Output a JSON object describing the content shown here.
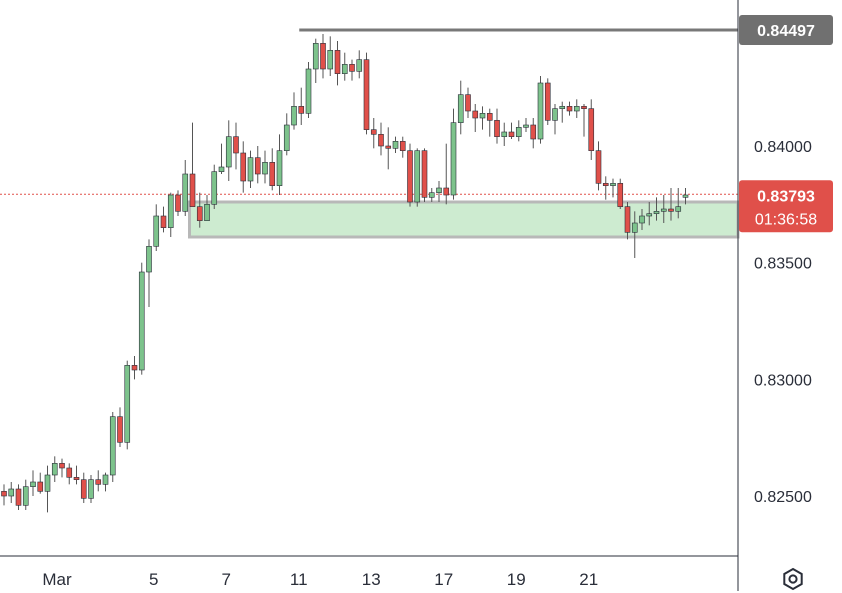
{
  "chart_data": {
    "type": "candlestick",
    "title": "",
    "xlabel": "",
    "ylabel": "",
    "ylim": [
      0.8224,
      0.8462
    ],
    "y_ticks": [
      "0.84000",
      "0.83500",
      "0.83000",
      "0.82500"
    ],
    "x_ticks": [
      {
        "label": "Mar",
        "index": 5
      },
      {
        "label": "5",
        "index": 19
      },
      {
        "label": "7",
        "index": 29
      },
      {
        "label": "11",
        "index": 39
      },
      {
        "label": "13",
        "index": 49
      },
      {
        "label": "17",
        "index": 59
      },
      {
        "label": "19",
        "index": 69
      },
      {
        "label": "21",
        "index": 79
      }
    ],
    "candles": [
      [
        0.8252,
        0.8255,
        0.8246,
        0.825
      ],
      [
        0.825,
        0.8256,
        0.8247,
        0.8253
      ],
      [
        0.8253,
        0.8255,
        0.8244,
        0.8246
      ],
      [
        0.8246,
        0.8257,
        0.8244,
        0.8254
      ],
      [
        0.8254,
        0.8261,
        0.825,
        0.8256
      ],
      [
        0.8256,
        0.826,
        0.8251,
        0.8252
      ],
      [
        0.8252,
        0.8263,
        0.8243,
        0.8259
      ],
      [
        0.8259,
        0.8267,
        0.8256,
        0.8264
      ],
      [
        0.8264,
        0.8266,
        0.8258,
        0.8262
      ],
      [
        0.8262,
        0.8264,
        0.8255,
        0.8258
      ],
      [
        0.8258,
        0.8263,
        0.8255,
        0.8257
      ],
      [
        0.8257,
        0.826,
        0.8247,
        0.8249
      ],
      [
        0.8249,
        0.8259,
        0.8247,
        0.8257
      ],
      [
        0.8257,
        0.8261,
        0.8252,
        0.8255
      ],
      [
        0.8255,
        0.826,
        0.8252,
        0.8259
      ],
      [
        0.8259,
        0.8286,
        0.8256,
        0.8284
      ],
      [
        0.8284,
        0.8288,
        0.8271,
        0.8273
      ],
      [
        0.8273,
        0.8308,
        0.827,
        0.8306
      ],
      [
        0.8306,
        0.831,
        0.83,
        0.8304
      ],
      [
        0.8304,
        0.835,
        0.8302,
        0.8346
      ],
      [
        0.8346,
        0.836,
        0.8331,
        0.8357
      ],
      [
        0.8357,
        0.8375,
        0.8355,
        0.837
      ],
      [
        0.837,
        0.8374,
        0.8363,
        0.8365
      ],
      [
        0.8365,
        0.838,
        0.8361,
        0.8379
      ],
      [
        0.8379,
        0.8381,
        0.837,
        0.8372
      ],
      [
        0.8372,
        0.8394,
        0.837,
        0.8388
      ],
      [
        0.8388,
        0.841,
        0.8376,
        0.8374
      ],
      [
        0.8374,
        0.838,
        0.8365,
        0.8368
      ],
      [
        0.8368,
        0.8379,
        0.8368,
        0.8375
      ],
      [
        0.8375,
        0.8392,
        0.8373,
        0.8389
      ],
      [
        0.8389,
        0.8401,
        0.8388,
        0.8391
      ],
      [
        0.8391,
        0.8411,
        0.8385,
        0.8404
      ],
      [
        0.8404,
        0.841,
        0.839,
        0.8397
      ],
      [
        0.8397,
        0.8402,
        0.838,
        0.8385
      ],
      [
        0.8385,
        0.8398,
        0.8382,
        0.8395
      ],
      [
        0.8395,
        0.84,
        0.8384,
        0.8388
      ],
      [
        0.8388,
        0.8398,
        0.8384,
        0.8393
      ],
      [
        0.8393,
        0.8399,
        0.8381,
        0.8383
      ],
      [
        0.8383,
        0.8405,
        0.8379,
        0.8398
      ],
      [
        0.8398,
        0.8414,
        0.8396,
        0.8409
      ],
      [
        0.8409,
        0.8423,
        0.8407,
        0.8417
      ],
      [
        0.8417,
        0.8425,
        0.8409,
        0.8414
      ],
      [
        0.8414,
        0.8436,
        0.8412,
        0.8433
      ],
      [
        0.8433,
        0.8446,
        0.8427,
        0.8444
      ],
      [
        0.8444,
        0.8448,
        0.8429,
        0.8433
      ],
      [
        0.8433,
        0.8447,
        0.843,
        0.8441
      ],
      [
        0.8441,
        0.8445,
        0.8426,
        0.8431
      ],
      [
        0.8431,
        0.844,
        0.8428,
        0.8435
      ],
      [
        0.8435,
        0.8437,
        0.8428,
        0.8432
      ],
      [
        0.8432,
        0.8441,
        0.8429,
        0.8437
      ],
      [
        0.8437,
        0.844,
        0.8405,
        0.8407
      ],
      [
        0.8407,
        0.8412,
        0.8399,
        0.8405
      ],
      [
        0.8405,
        0.841,
        0.8396,
        0.84
      ],
      [
        0.84,
        0.8408,
        0.839,
        0.8399
      ],
      [
        0.8399,
        0.8404,
        0.8397,
        0.8402
      ],
      [
        0.8402,
        0.8404,
        0.8395,
        0.8398
      ],
      [
        0.8398,
        0.8401,
        0.8374,
        0.8376
      ],
      [
        0.8376,
        0.8399,
        0.8374,
        0.8398
      ],
      [
        0.8398,
        0.8399,
        0.8376,
        0.8378
      ],
      [
        0.8378,
        0.8382,
        0.8376,
        0.838
      ],
      [
        0.838,
        0.8385,
        0.8376,
        0.8382
      ],
      [
        0.8382,
        0.8401,
        0.8375,
        0.8379
      ],
      [
        0.8379,
        0.8416,
        0.8377,
        0.841
      ],
      [
        0.841,
        0.8428,
        0.8405,
        0.8422
      ],
      [
        0.8422,
        0.8425,
        0.8412,
        0.8415
      ],
      [
        0.8415,
        0.8418,
        0.8406,
        0.8412
      ],
      [
        0.8412,
        0.8417,
        0.8407,
        0.8414
      ],
      [
        0.8414,
        0.8416,
        0.8404,
        0.8411
      ],
      [
        0.8411,
        0.8416,
        0.8401,
        0.8404
      ],
      [
        0.8404,
        0.841,
        0.84,
        0.8406
      ],
      [
        0.8406,
        0.841,
        0.8403,
        0.8404
      ],
      [
        0.8404,
        0.8411,
        0.8402,
        0.8408
      ],
      [
        0.8408,
        0.8412,
        0.8406,
        0.8409
      ],
      [
        0.8409,
        0.8412,
        0.8399,
        0.8403
      ],
      [
        0.8403,
        0.843,
        0.8401,
        0.8427
      ],
      [
        0.8427,
        0.8429,
        0.8409,
        0.8411
      ],
      [
        0.8411,
        0.8418,
        0.8405,
        0.8416
      ],
      [
        0.8416,
        0.8419,
        0.841,
        0.8417
      ],
      [
        0.8417,
        0.8419,
        0.8413,
        0.8415
      ],
      [
        0.8415,
        0.842,
        0.8412,
        0.8417
      ],
      [
        0.8417,
        0.8418,
        0.8404,
        0.8416
      ],
      [
        0.8416,
        0.842,
        0.8394,
        0.8398
      ],
      [
        0.8398,
        0.8402,
        0.8381,
        0.8384
      ],
      [
        0.8384,
        0.8387,
        0.8377,
        0.8383
      ],
      [
        0.8383,
        0.8386,
        0.8378,
        0.8384
      ],
      [
        0.8384,
        0.8386,
        0.8373,
        0.8374
      ],
      [
        0.8374,
        0.8376,
        0.836,
        0.8363
      ],
      [
        0.8363,
        0.8372,
        0.8352,
        0.8367
      ],
      [
        0.8367,
        0.8373,
        0.8364,
        0.837
      ],
      [
        0.837,
        0.8376,
        0.8366,
        0.8371
      ],
      [
        0.8371,
        0.8378,
        0.8368,
        0.8372
      ],
      [
        0.8372,
        0.8379,
        0.8367,
        0.8373
      ],
      [
        0.8373,
        0.8382,
        0.8368,
        0.8372
      ],
      [
        0.8372,
        0.8382,
        0.8369,
        0.8374
      ],
      [
        0.8378,
        0.8382,
        0.8375,
        0.8379
      ]
    ],
    "support_zone": {
      "top": 0.8376,
      "bottom": 0.8361,
      "start_index": 26
    },
    "resistance_line": {
      "value": 0.84497,
      "start_index": 41,
      "label": "0.84497"
    },
    "current_price": {
      "value": 0.83793,
      "label": "0.83793",
      "countdown": "01:36:58"
    },
    "grid": false,
    "colors": {
      "up": "#7dc38c",
      "up_border": "#2a2e39",
      "down": "#e0504a",
      "down_border": "#2a2e39",
      "wick": "#555555",
      "zone_fill": "#cdebd0",
      "zone_border": "#b8b8b8",
      "resistance": "#787878",
      "resistance_tag": "#707070",
      "price_tag": "#e0504a",
      "axis_line": "#2a2e39"
    }
  },
  "toolbar": {
    "settings_icon": "settings-icon"
  }
}
